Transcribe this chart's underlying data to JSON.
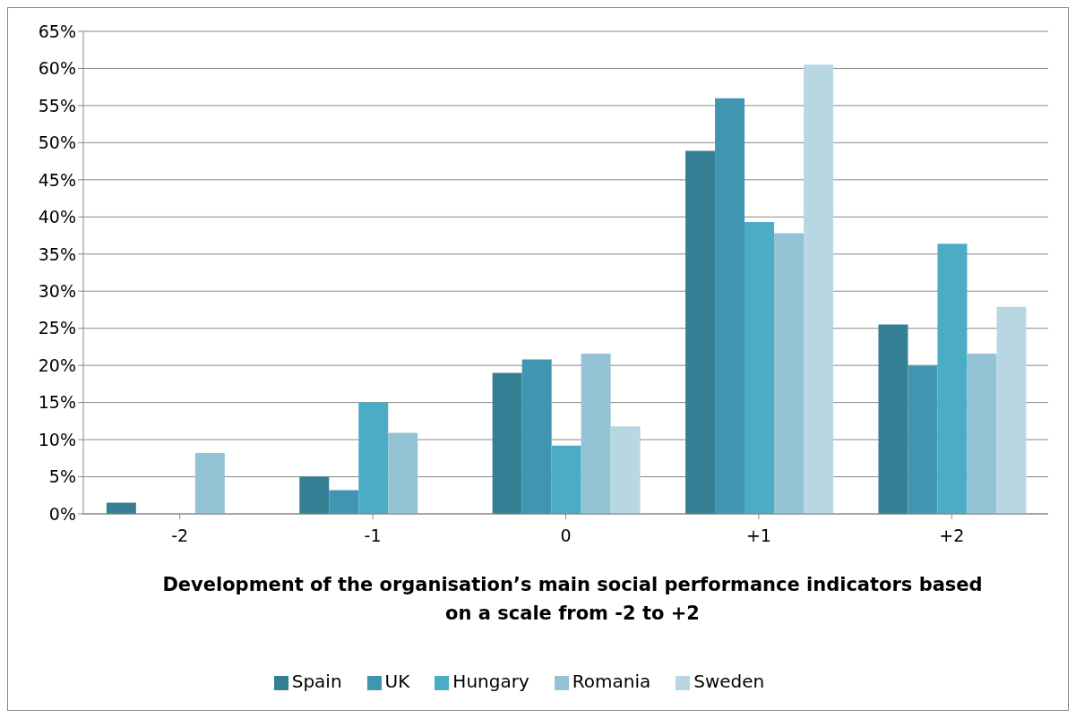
{
  "chart_data": {
    "type": "bar",
    "xlabel": "Development of the organisation’s main social performance indicators based on a scale from -2 to +2",
    "categories": [
      "-2",
      "-1",
      "0",
      "+1",
      "+2"
    ],
    "series": [
      {
        "name": "Spain",
        "color": "#357f94",
        "values": [
          1.5,
          5,
          19,
          48.9,
          25.5
        ]
      },
      {
        "name": "UK",
        "color": "#4096b0",
        "values": [
          0,
          3.2,
          20.8,
          56,
          20
        ]
      },
      {
        "name": "Hungary",
        "color": "#4bacc6",
        "values": [
          0,
          15,
          9.2,
          39.3,
          36.4
        ]
      },
      {
        "name": "Romania",
        "color": "#93c3d4",
        "values": [
          8.2,
          10.9,
          21.6,
          37.8,
          21.6
        ]
      },
      {
        "name": "Sweden",
        "color": "#b8d7e2",
        "values": [
          0,
          0,
          11.8,
          60.5,
          27.9
        ]
      }
    ],
    "ylim": [
      0,
      65
    ],
    "yticks": [
      {
        "value": 0,
        "label": "0%"
      },
      {
        "value": 5,
        "label": "5%"
      },
      {
        "value": 10,
        "label": "10%"
      },
      {
        "value": 15,
        "label": "15%"
      },
      {
        "value": 20,
        "label": "20%"
      },
      {
        "value": 25,
        "label": "25%"
      },
      {
        "value": 30,
        "label": "30%"
      },
      {
        "value": 35,
        "label": "35%"
      },
      {
        "value": 40,
        "label": "40%"
      },
      {
        "value": 45,
        "label": "45%"
      },
      {
        "value": 50,
        "label": "50%"
      },
      {
        "value": 55,
        "label": "55%"
      },
      {
        "value": 60,
        "label": "60%"
      },
      {
        "value": 65,
        "label": "65%"
      }
    ],
    "grid": "y",
    "legend": "bottom"
  }
}
